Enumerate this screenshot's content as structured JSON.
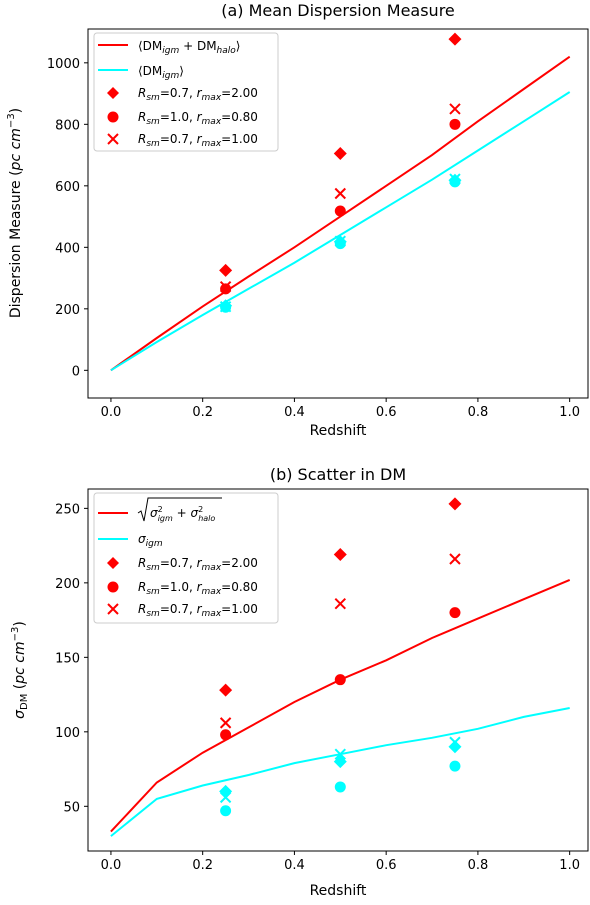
{
  "chart_data": [
    {
      "type": "line",
      "title": "(a) Mean Dispersion Measure",
      "xlabel": "Redshift",
      "ylabel": "Dispersion Measure (pc cm⁻³)",
      "xlim": [
        -0.05,
        1.04
      ],
      "ylim": [
        -90,
        1110
      ],
      "xticks": [
        0.0,
        0.2,
        0.4,
        0.6,
        0.8,
        1.0
      ],
      "xtick_labels": [
        "0.0",
        "0.2",
        "0.4",
        "0.6",
        "0.8",
        "1.0"
      ],
      "yticks": [
        0,
        200,
        400,
        600,
        800,
        1000
      ],
      "ytick_labels": [
        "0",
        "200",
        "400",
        "600",
        "800",
        "1000"
      ],
      "grid": false,
      "legend_position": "top-left",
      "series": [
        {
          "name": "⟨DM_igm + DM_halo⟩",
          "kind": "line",
          "color": "#ff0000",
          "x": [
            0.0,
            0.1,
            0.2,
            0.3,
            0.4,
            0.5,
            0.6,
            0.7,
            0.8,
            0.9,
            1.0
          ],
          "y": [
            0,
            105,
            208,
            305,
            400,
            500,
            600,
            700,
            810,
            915,
            1020
          ]
        },
        {
          "name": "⟨DM_igm⟩",
          "kind": "line",
          "color": "#00ffff",
          "x": [
            0.0,
            0.1,
            0.2,
            0.3,
            0.4,
            0.5,
            0.6,
            0.7,
            0.8,
            0.9,
            1.0
          ],
          "y": [
            0,
            92,
            180,
            265,
            350,
            440,
            530,
            620,
            715,
            810,
            905
          ]
        },
        {
          "name": "R_sm = 0.7, r_max = 2.00",
          "kind": "diamond",
          "color": "#ff0000",
          "x": [
            0.25,
            0.5,
            0.75
          ],
          "y": [
            325,
            705,
            1077
          ]
        },
        {
          "name": "R_sm = 1.0, r_max = 0.80",
          "kind": "circle",
          "color": "#ff0000",
          "x": [
            0.25,
            0.5,
            0.75
          ],
          "y": [
            265,
            518,
            800
          ]
        },
        {
          "name": "R_sm = 0.7, r_max = 1.00",
          "kind": "x",
          "color": "#ff0000",
          "x": [
            0.25,
            0.5,
            0.75
          ],
          "y": [
            272,
            575,
            850
          ]
        },
        {
          "name": "",
          "kind": "diamond",
          "color": "#00ffff",
          "x": [
            0.25,
            0.5,
            0.75
          ],
          "y": [
            210,
            418,
            618
          ]
        },
        {
          "name": "",
          "kind": "circle",
          "color": "#00ffff",
          "x": [
            0.25,
            0.5,
            0.75
          ],
          "y": [
            205,
            412,
            613
          ]
        },
        {
          "name": "",
          "kind": "x",
          "color": "#00ffff",
          "x": [
            0.25,
            0.5,
            0.75
          ],
          "y": [
            207,
            420,
            622
          ]
        }
      ]
    },
    {
      "type": "line",
      "title": "(b) Scatter in DM",
      "xlabel": "Redshift",
      "ylabel": "σ_DM (pc cm⁻³)",
      "xlim": [
        -0.05,
        1.04
      ],
      "ylim": [
        20,
        263
      ],
      "xticks": [
        0.0,
        0.2,
        0.4,
        0.6,
        0.8,
        1.0
      ],
      "xtick_labels": [
        "0.0",
        "0.2",
        "0.4",
        "0.6",
        "0.8",
        "1.0"
      ],
      "yticks": [
        50,
        100,
        150,
        200,
        250
      ],
      "ytick_labels": [
        "50",
        "100",
        "150",
        "200",
        "250"
      ],
      "grid": false,
      "legend_position": "top-left",
      "series": [
        {
          "name": "√(σ²_igm + σ²_halo)",
          "kind": "line",
          "color": "#ff0000",
          "x": [
            0.0,
            0.1,
            0.2,
            0.3,
            0.4,
            0.5,
            0.6,
            0.7,
            0.8,
            0.9,
            1.0
          ],
          "y": [
            33,
            66,
            86,
            103,
            120,
            135,
            148,
            163,
            176,
            189,
            202
          ]
        },
        {
          "name": "σ_igm",
          "kind": "line",
          "color": "#00ffff",
          "x": [
            0.0,
            0.1,
            0.2,
            0.3,
            0.4,
            0.5,
            0.6,
            0.7,
            0.8,
            0.9,
            1.0
          ],
          "y": [
            30,
            55,
            64,
            71,
            79,
            85,
            91,
            96,
            102,
            110,
            116
          ]
        },
        {
          "name": "R_sm = 0.7, r_max = 2.00",
          "kind": "diamond",
          "color": "#ff0000",
          "x": [
            0.25,
            0.5,
            0.75
          ],
          "y": [
            128,
            219,
            253
          ]
        },
        {
          "name": "R_sm = 1.0, r_max = 0.80",
          "kind": "circle",
          "color": "#ff0000",
          "x": [
            0.25,
            0.5,
            0.75
          ],
          "y": [
            98,
            135,
            180
          ]
        },
        {
          "name": "R_sm = 0.7, r_max = 1.00",
          "kind": "x",
          "color": "#ff0000",
          "x": [
            0.25,
            0.5,
            0.75
          ],
          "y": [
            106,
            186,
            216
          ]
        },
        {
          "name": "",
          "kind": "diamond",
          "color": "#00ffff",
          "x": [
            0.25,
            0.5,
            0.75
          ],
          "y": [
            60,
            80,
            90
          ]
        },
        {
          "name": "",
          "kind": "circle",
          "color": "#00ffff",
          "x": [
            0.25,
            0.5,
            0.75
          ],
          "y": [
            47,
            63,
            77
          ]
        },
        {
          "name": "",
          "kind": "x",
          "color": "#00ffff",
          "x": [
            0.25,
            0.5,
            0.75
          ],
          "y": [
            56,
            85,
            93
          ]
        }
      ]
    }
  ]
}
